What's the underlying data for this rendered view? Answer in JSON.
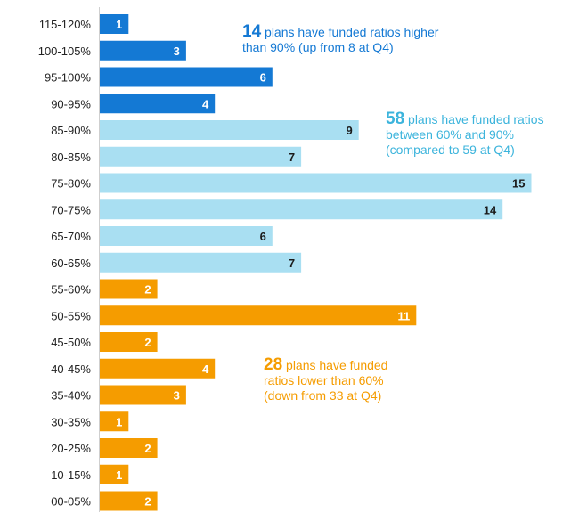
{
  "chart_data": {
    "type": "bar",
    "orientation": "horizontal",
    "categories": [
      "115-120%",
      "100-105%",
      "95-100%",
      "90-95%",
      "85-90%",
      "80-85%",
      "75-80%",
      "70-75%",
      "65-70%",
      "60-65%",
      "55-60%",
      "50-55%",
      "45-50%",
      "40-45%",
      "35-40%",
      "30-35%",
      "20-25%",
      "10-15%",
      "00-05%"
    ],
    "values": [
      1,
      3,
      6,
      4,
      9,
      7,
      15,
      14,
      6,
      7,
      2,
      11,
      2,
      4,
      3,
      1,
      2,
      1,
      2
    ],
    "bar_groups": [
      "high",
      "high",
      "high",
      "high",
      "mid",
      "mid",
      "mid",
      "mid",
      "mid",
      "mid",
      "low",
      "low",
      "low",
      "low",
      "low",
      "low",
      "low",
      "low",
      "low"
    ],
    "group_colors": {
      "high": "#1479d4",
      "mid": "#a9dff2",
      "low": "#f59c00"
    },
    "label_colors": {
      "high": "#ffffff",
      "mid": "#1a1a1a",
      "low": "#ffffff"
    },
    "xlim": [
      0,
      15
    ],
    "grid": false,
    "data_labels": true,
    "annotations": {
      "high": {
        "number": "14",
        "line1": " plans have funded ratios higher",
        "line2": "than 90% (up from 8 at Q4)"
      },
      "mid": {
        "number": "58",
        "line1": " plans have funded ratios",
        "line2": "between 60% and 90%",
        "line3": "(compared to 59 at Q4)"
      },
      "low": {
        "number": "28",
        "line1": " plans have funded",
        "line2": "ratios lower than 60%",
        "line3": "(down from 33 at Q4)"
      }
    }
  }
}
